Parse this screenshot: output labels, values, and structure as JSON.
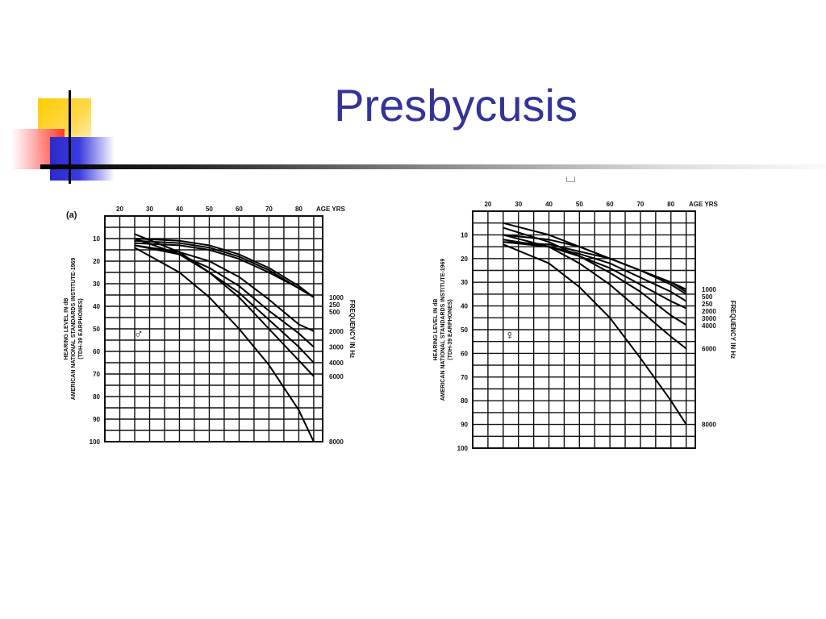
{
  "slide": {
    "title": "Presbycusis"
  },
  "chart_data": [
    {
      "type": "line",
      "panel_label": "(a)",
      "sex_symbol": "♂",
      "ylabel": [
        "HEARING LEVEL IN dB",
        "AMERICAN NATIONAL STANDARDS INSTITUTE-1969",
        "(TDH-39 EARPHONES)"
      ],
      "right_label": "FREQUENCY IN Hz",
      "x_ticks": [
        "20",
        "30",
        "40",
        "50",
        "60",
        "70",
        "80"
      ],
      "x_unit": "AGE YRS",
      "y_ticks": [
        "10",
        "20",
        "30",
        "40",
        "50",
        "60",
        "70",
        "80",
        "90",
        "100"
      ],
      "xlim": [
        15,
        88
      ],
      "ylim": [
        0,
        100
      ],
      "series": [
        {
          "name": "1000",
          "x": [
            25,
            40,
            50,
            60,
            70,
            80,
            85
          ],
          "y": [
            12,
            13,
            15,
            19,
            25,
            32,
            36
          ]
        },
        {
          "name": "250",
          "x": [
            25,
            40,
            50,
            60,
            70,
            80,
            85
          ],
          "y": [
            11,
            12,
            14,
            18,
            24,
            32,
            36
          ]
        },
        {
          "name": "500",
          "x": [
            25,
            40,
            50,
            60,
            70,
            80,
            85
          ],
          "y": [
            10,
            11,
            13,
            17,
            23,
            31,
            36
          ]
        },
        {
          "name": "2000",
          "x": [
            25,
            40,
            50,
            60,
            70,
            80,
            85
          ],
          "y": [
            13,
            16,
            20,
            27,
            37,
            48,
            51
          ]
        },
        {
          "name": "3000",
          "x": [
            25,
            40,
            50,
            60,
            70,
            80,
            85
          ],
          "y": [
            13,
            17,
            23,
            31,
            42,
            52,
            58
          ]
        },
        {
          "name": "4000",
          "x": [
            25,
            40,
            50,
            60,
            70,
            80,
            85
          ],
          "y": [
            10,
            17,
            25,
            34,
            46,
            58,
            65
          ]
        },
        {
          "name": "6000",
          "x": [
            25,
            40,
            50,
            60,
            70,
            80,
            85
          ],
          "y": [
            8,
            16,
            25,
            36,
            50,
            64,
            71
          ]
        },
        {
          "name": "8000",
          "x": [
            25,
            40,
            50,
            60,
            70,
            80,
            85
          ],
          "y": [
            14,
            25,
            36,
            50,
            66,
            86,
            100
          ]
        }
      ],
      "right_labels": [
        "1000",
        "250",
        "500",
        "2000",
        "3000",
        "4000",
        "6000",
        "8000"
      ]
    },
    {
      "type": "line",
      "sex_symbol": "♀",
      "ylabel": [
        "HEARING LEVEL IN dB",
        "AMERICAN NATIONAL STANDARDS INSTITUTE-1969",
        "(TDH-39 EARPHONES)"
      ],
      "right_label": "FREQUENCY IN Hz",
      "x_ticks": [
        "20",
        "30",
        "40",
        "50",
        "60",
        "70",
        "80"
      ],
      "x_unit": "AGE YRS",
      "y_ticks": [
        "10",
        "20",
        "30",
        "40",
        "50",
        "60",
        "70",
        "80",
        "90",
        "100"
      ],
      "xlim": [
        15,
        88
      ],
      "ylim": [
        0,
        100
      ],
      "series": [
        {
          "name": "1000",
          "x": [
            25,
            40,
            50,
            60,
            70,
            80,
            85
          ],
          "y": [
            10,
            12,
            15,
            20,
            25,
            30,
            33
          ]
        },
        {
          "name": "500",
          "x": [
            25,
            40,
            50,
            60,
            70,
            80,
            85
          ],
          "y": [
            5,
            10,
            15,
            20,
            25,
            30,
            34
          ]
        },
        {
          "name": "250",
          "x": [
            25,
            40,
            50,
            60,
            70,
            80,
            85
          ],
          "y": [
            13,
            14,
            17,
            20,
            25,
            31,
            35
          ]
        },
        {
          "name": "2000",
          "x": [
            25,
            40,
            50,
            60,
            70,
            80,
            85
          ],
          "y": [
            13,
            15,
            18,
            22,
            28,
            34,
            38
          ]
        },
        {
          "name": "3000",
          "x": [
            25,
            40,
            50,
            60,
            70,
            80,
            85
          ],
          "y": [
            12,
            15,
            19,
            24,
            31,
            38,
            41
          ]
        },
        {
          "name": "4000",
          "x": [
            25,
            40,
            50,
            60,
            70,
            80,
            85
          ],
          "y": [
            7,
            13,
            19,
            26,
            34,
            44,
            48
          ]
        },
        {
          "name": "6000",
          "x": [
            25,
            40,
            50,
            60,
            70,
            80,
            85
          ],
          "y": [
            10,
            15,
            22,
            31,
            42,
            53,
            58
          ]
        },
        {
          "name": "8000",
          "x": [
            25,
            40,
            50,
            60,
            70,
            80,
            85
          ],
          "y": [
            14,
            22,
            32,
            45,
            62,
            80,
            90
          ]
        }
      ],
      "right_labels": [
        "1000",
        "500",
        "250",
        "2000",
        "3000",
        "4000",
        "6000",
        "8000"
      ]
    }
  ]
}
